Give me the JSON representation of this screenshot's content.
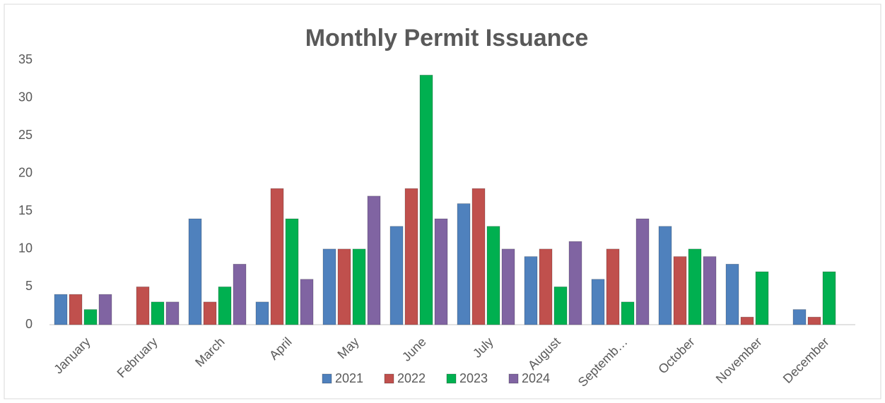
{
  "chart_data": {
    "type": "bar",
    "title": "Monthly Permit Issuance",
    "categories": [
      "January",
      "February",
      "March",
      "April",
      "May",
      "June",
      "July",
      "August",
      "Septemb…",
      "October",
      "November",
      "December"
    ],
    "series": [
      {
        "name": "2021",
        "color": "#4f81bd",
        "values": [
          4,
          0,
          14,
          3,
          10,
          13,
          16,
          9,
          6,
          13,
          8,
          2
        ]
      },
      {
        "name": "2022",
        "color": "#c0504d",
        "values": [
          4,
          5,
          3,
          18,
          10,
          18,
          18,
          10,
          10,
          9,
          1,
          1
        ]
      },
      {
        "name": "2023",
        "color": "#00b050",
        "values": [
          2,
          3,
          5,
          14,
          10,
          33,
          13,
          5,
          3,
          10,
          7,
          7
        ]
      },
      {
        "name": "2024",
        "color": "#8064a2",
        "values": [
          4,
          3,
          8,
          6,
          17,
          14,
          10,
          11,
          14,
          9,
          0,
          0
        ]
      }
    ],
    "ylim": [
      0,
      35
    ],
    "yticks": [
      0,
      5,
      10,
      15,
      20,
      25,
      30,
      35
    ],
    "grid": false,
    "legend": "bottom"
  }
}
